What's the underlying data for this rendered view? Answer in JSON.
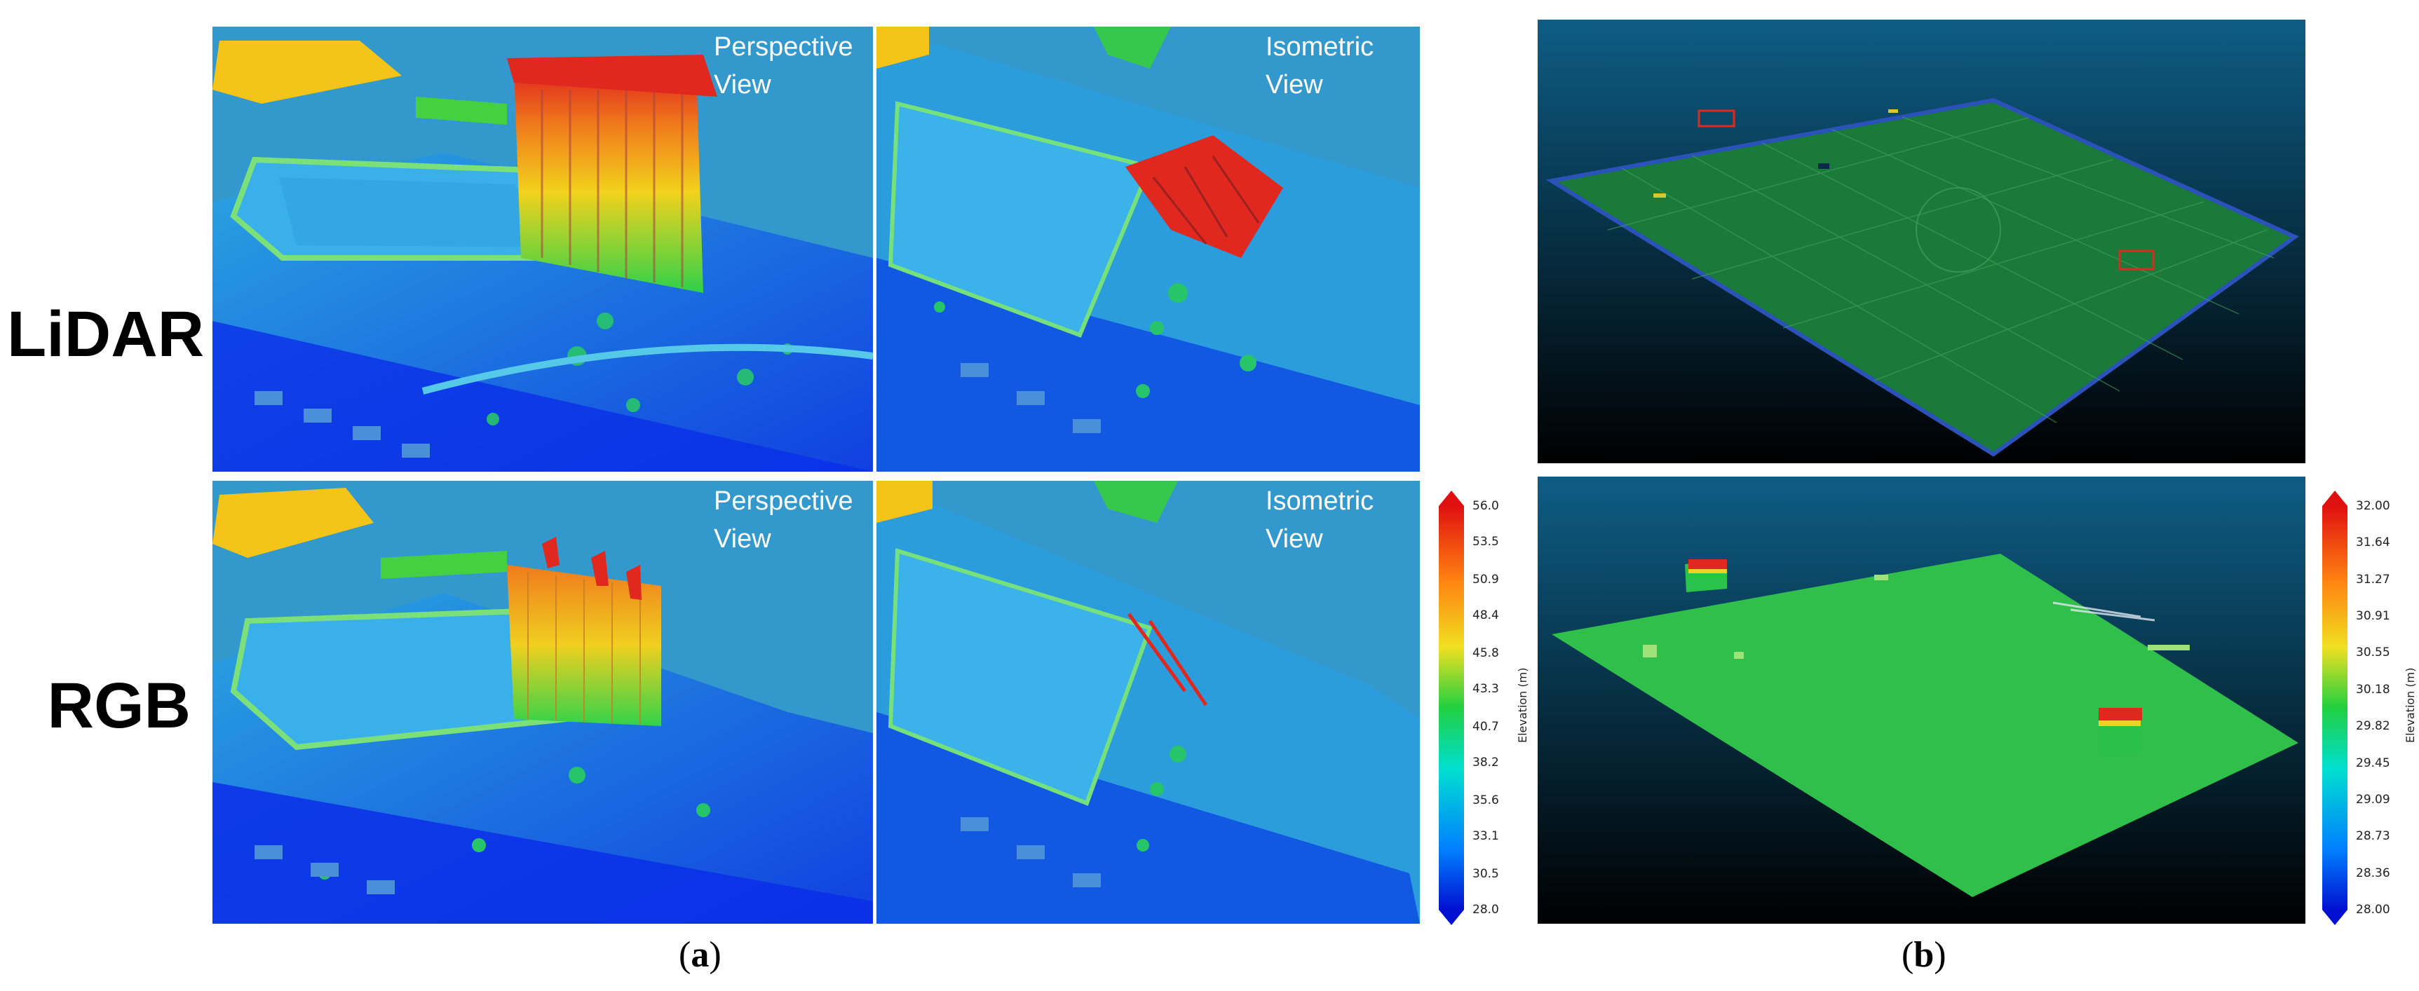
{
  "rows": {
    "lidar_label": "LiDAR",
    "rgb_label": "RGB"
  },
  "panel_a": {
    "caption_open": "(",
    "caption_letter": "a",
    "caption_close": ")",
    "lidar_perspective": {
      "line1": "Perspective",
      "line2": "View"
    },
    "lidar_isometric": {
      "line1": "Isometric",
      "line2": "View"
    },
    "rgb_perspective": {
      "line1": "Perspective",
      "line2": "View"
    },
    "rgb_isometric": {
      "line1": "Isometric",
      "line2": "View"
    },
    "colorbar": {
      "title": "Elevation (m)",
      "min": 28.0,
      "max": 56.0,
      "ticks": [
        "28.0",
        "30.5",
        "33.1",
        "35.6",
        "38.2",
        "40.7",
        "43.3",
        "45.8",
        "48.4",
        "50.9",
        "53.5",
        "56.0"
      ]
    }
  },
  "panel_b": {
    "caption_open": "(",
    "caption_letter": "b",
    "caption_close": ")",
    "colorbar": {
      "title": "Elevation (m)",
      "min": 28.0,
      "max": 32.0,
      "ticks": [
        "28.00",
        "28.36",
        "28.73",
        "29.09",
        "29.45",
        "29.82",
        "30.18",
        "30.55",
        "30.91",
        "31.27",
        "31.64",
        "32.00"
      ]
    }
  },
  "colors": {
    "scene_bg": "#3399cc",
    "field_bg_top": "#0e4f72",
    "field_bg_bottom": "#000000",
    "ground_blue": "#1e6fe0",
    "pool_cyan": "#29a9e6",
    "building_red": "#e0321e",
    "field_green": "#2fbf4a"
  }
}
